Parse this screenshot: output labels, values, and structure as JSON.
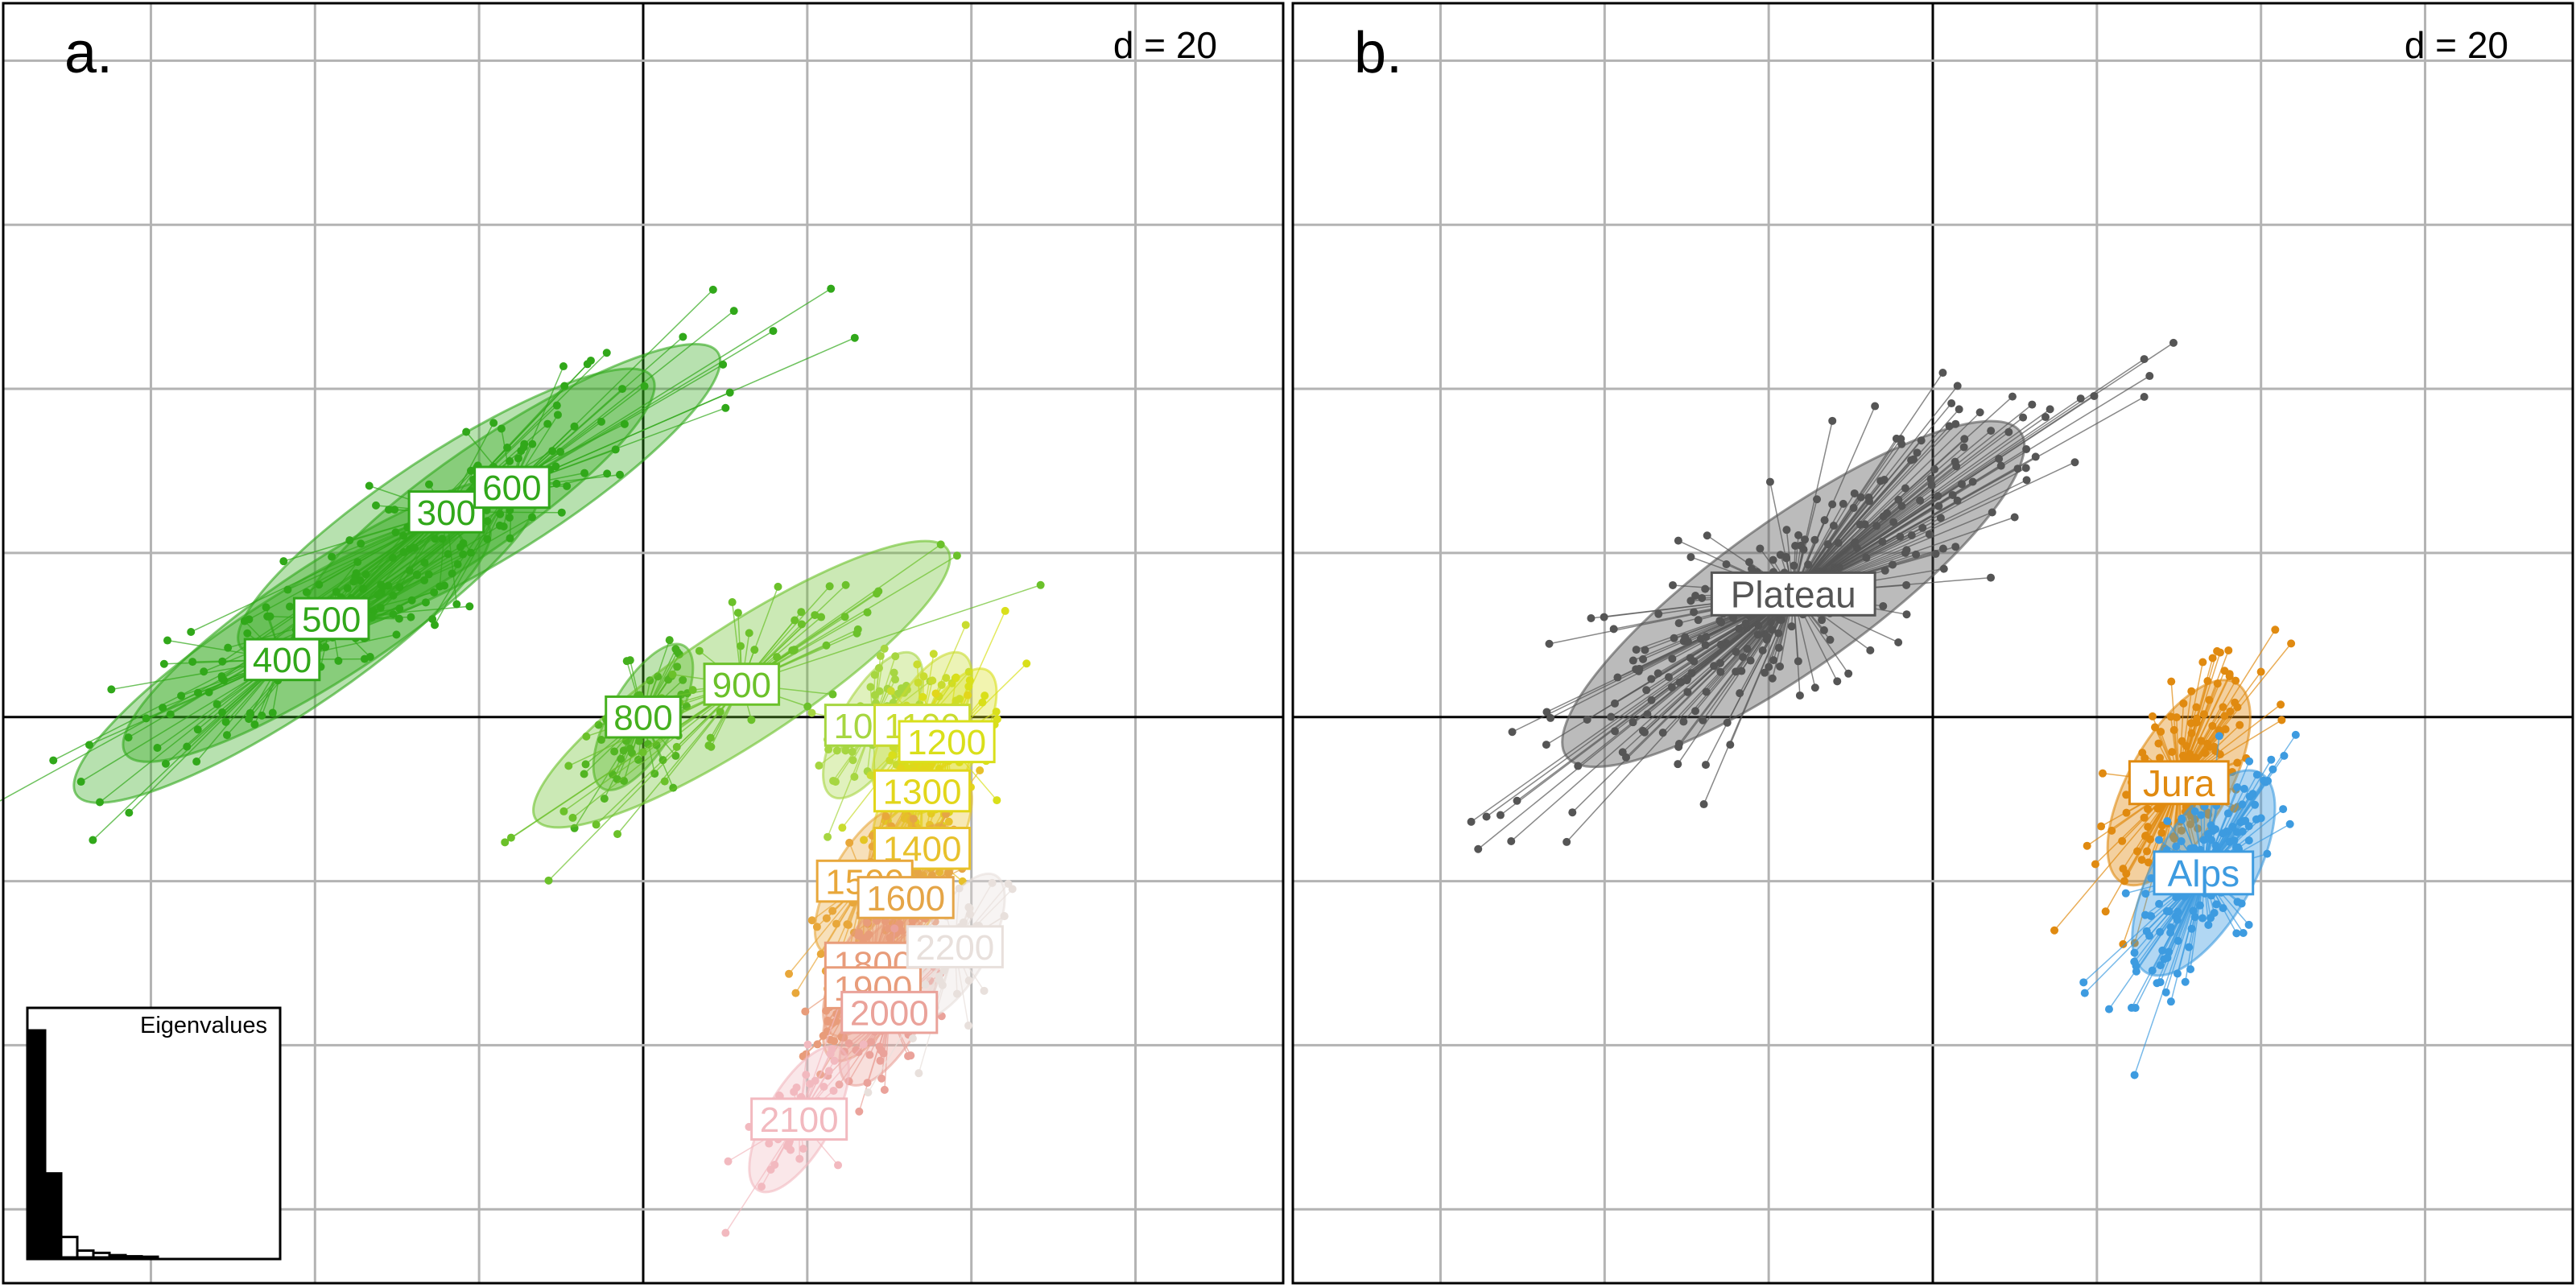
{
  "figure": {
    "panel_a": {
      "tag": "a.",
      "scale": "d = 20",
      "inset_title": "Eigenvalues",
      "eigenvalues": [
        100,
        37,
        9,
        3,
        2,
        1,
        0.5,
        0.3
      ]
    },
    "panel_b": {
      "tag": "b.",
      "scale": "d = 20"
    }
  },
  "chart_data": [
    {
      "type": "scatter",
      "panel": "a",
      "title": "",
      "xlabel": "",
      "ylabel": "",
      "xlim": [
        -78,
        78
      ],
      "ylim": [
        -69,
        87
      ],
      "grid": true,
      "grid_spacing": 20,
      "groups": [
        {
          "name": "300",
          "centroid": [
            -24,
            25
          ],
          "color": "#31a81a"
        },
        {
          "name": "400",
          "centroid": [
            -44,
            7
          ],
          "color": "#31a81a"
        },
        {
          "name": "500",
          "centroid": [
            -38,
            12
          ],
          "color": "#31a81a"
        },
        {
          "name": "600",
          "centroid": [
            -16,
            28
          ],
          "color": "#31a81a"
        },
        {
          "name": "800",
          "centroid": -1,
          "color": "#45b01e"
        },
        {
          "name": "900",
          "centroid": [
            12,
            4
          ],
          "color": "#6bc12a"
        },
        {
          "name": "1000",
          "centroid": [
            28,
            -1
          ],
          "color": "#a6d641"
        },
        {
          "name": "1100",
          "centroid": [
            34,
            -1
          ],
          "color": "#c9dc2f"
        },
        {
          "name": "1200",
          "centroid": [
            37,
            -3
          ],
          "color": "#d9df1a"
        },
        {
          "name": "1300",
          "centroid": [
            34,
            -9
          ],
          "color": "#e2d61a"
        },
        {
          "name": "1400",
          "centroid": [
            34,
            -16
          ],
          "color": "#e8c12b"
        },
        {
          "name": "1500",
          "centroid": [
            27,
            -20
          ],
          "color": "#e8a73a"
        },
        {
          "name": "1600",
          "centroid": [
            32,
            -22
          ],
          "color": "#e5a547"
        },
        {
          "name": "1800",
          "centroid": [
            28,
            -30
          ],
          "color": "#e89c7a"
        },
        {
          "name": "1900",
          "centroid": [
            28,
            -33
          ],
          "color": "#e89c7a"
        },
        {
          "name": "2000",
          "centroid": [
            30,
            -36
          ],
          "color": "#eaa29a"
        },
        {
          "name": "2100",
          "centroid": [
            19,
            -49
          ],
          "color": "#f2b9bf"
        },
        {
          "name": "2200",
          "centroid": [
            38,
            -28
          ],
          "color": "#e8e0dc"
        }
      ]
    },
    {
      "type": "scatter",
      "panel": "b",
      "title": "",
      "xlabel": "",
      "ylabel": "",
      "xlim": [
        -78,
        78
      ],
      "ylim": [
        -69,
        87
      ],
      "grid": true,
      "grid_spacing": 20,
      "groups": [
        {
          "name": "Plateau",
          "centroid": [
            -17,
            15
          ],
          "color": "#555555"
        },
        {
          "name": "Jura",
          "centroid": [
            30,
            -8
          ],
          "color": "#e08a10"
        },
        {
          "name": "Alps",
          "centroid": [
            33,
            -19
          ],
          "color": "#3d9be0"
        }
      ]
    }
  ]
}
